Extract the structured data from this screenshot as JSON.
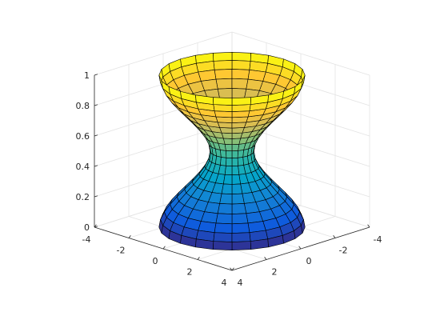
{
  "chart_data": {
    "type": "surface",
    "title": "",
    "xlabel": "",
    "ylabel": "",
    "zlabel": "",
    "surface": {
      "shape": "hourglass surface of revolution",
      "z_min": 0,
      "z_max": 1,
      "radius_profile": {
        "z": [
          0,
          0.5,
          1
        ],
        "r": [
          3.0,
          0.9,
          3.0
        ]
      },
      "rings": 20,
      "segments": 24,
      "colormap": "parula",
      "edge_color": "#000000"
    },
    "axes": {
      "xlim": [
        -4,
        4
      ],
      "ylim": [
        -4,
        4
      ],
      "zlim": [
        0,
        1
      ],
      "x_ticks": [
        -4,
        -2,
        0,
        2,
        4
      ],
      "y_ticks": [
        -4,
        -2,
        0,
        2,
        4
      ],
      "z_ticks": [
        0,
        0.2,
        0.4,
        0.6,
        0.8,
        1
      ],
      "x_tick_labels": [
        "-4",
        "-2",
        "0",
        "2",
        "4"
      ],
      "y_tick_labels": [
        "-4",
        "-2",
        "0",
        "2",
        "4"
      ],
      "z_tick_labels": [
        "0",
        "0.2",
        "0.4",
        "0.6",
        "0.8",
        "1"
      ],
      "grid": true,
      "box": false,
      "view": "3d"
    },
    "colors": {
      "parula": [
        "#352a87",
        "#0f5cdd",
        "#1481d6",
        "#06a4ca",
        "#2eb7a4",
        "#87bf77",
        "#d1bb59",
        "#fec832",
        "#f9fb0e"
      ],
      "axis": "#262626",
      "grid": "#e3e3e3"
    }
  }
}
